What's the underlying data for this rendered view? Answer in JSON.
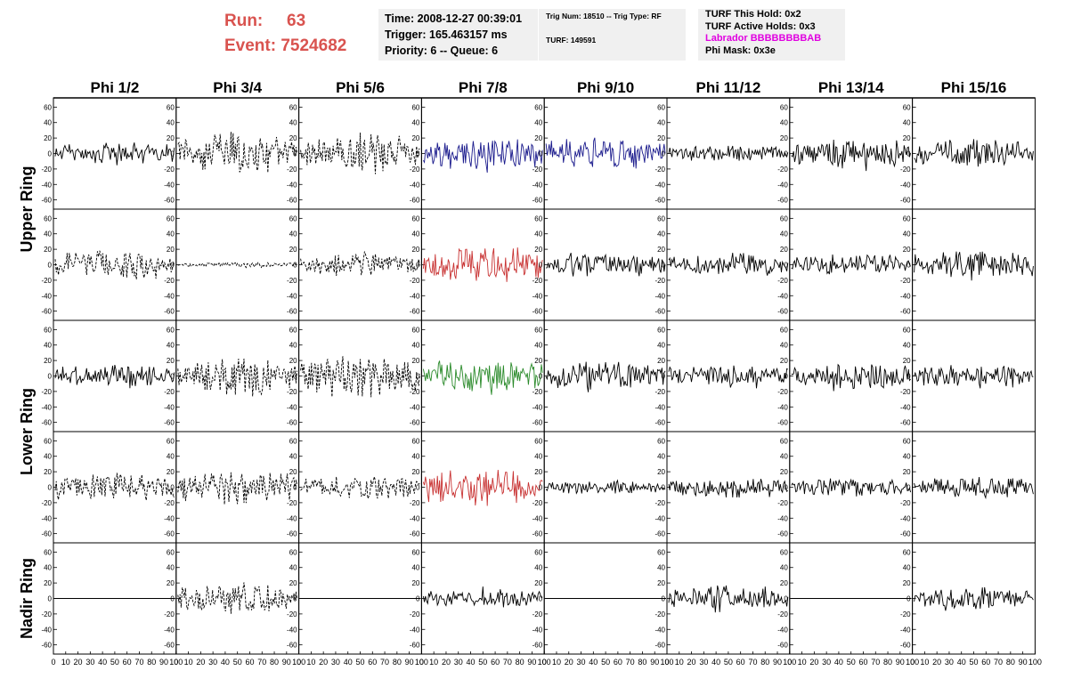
{
  "header": {
    "run_label": "Run:",
    "run_value": "63",
    "event_label": "Event:",
    "event_value": "7524682",
    "time_line": "Time: 2008-12-27 00:39:01",
    "trigger_line": "Trigger: 165.463157 ms",
    "priority_line": "Priority: 6 -- Queue: 6",
    "trig_line": "Trig Num: 18510 -- Trig Type: RF",
    "turf_line": "TURF: 149591",
    "turf_hold_line": "TURF This Hold: 0x2",
    "turf_active_line": "TURF Active Holds: 0x3",
    "labrador_line": "Labrador BBBBBBBBAB",
    "phi_mask_line": "Phi Mask: 0x3e",
    "colors": {
      "run_event": "#d9534f",
      "labrador": "#e000e0",
      "box_bg": "#f0f0f0"
    }
  },
  "chart_data": {
    "type": "line",
    "columns": [
      "Phi 1/2",
      "Phi 3/4",
      "Phi 5/6",
      "Phi 7/8",
      "Phi 9/10",
      "Phi 11/12",
      "Phi 13/14",
      "Phi 15/16"
    ],
    "ring_labels": [
      "Upper Ring",
      "Lower Ring",
      "Nadir Ring"
    ],
    "ring_rows": [
      [
        0,
        1
      ],
      [
        2,
        3
      ],
      [
        4,
        4
      ]
    ],
    "ylim": [
      -65,
      65
    ],
    "yticks": [
      -60,
      -40,
      -20,
      0,
      20,
      40,
      60
    ],
    "xlim": [
      0,
      100
    ],
    "xtick_labels": [
      "0",
      "10",
      "20",
      "30",
      "40",
      "50",
      "60",
      "70",
      "80",
      "90",
      "100"
    ],
    "grid": false,
    "colors": {
      "black": "#000000",
      "blue": "#1a1a8c",
      "red": "#c83232",
      "green": "#2a8a2a"
    },
    "panels": [
      [
        {
          "style": "solid",
          "color": "black",
          "amp": 14
        },
        {
          "style": "dashed",
          "color": "black",
          "amp": 25
        },
        {
          "style": "dashed",
          "color": "black",
          "amp": 25
        },
        {
          "style": "solid",
          "color": "blue",
          "amp": 20
        },
        {
          "style": "solid",
          "color": "blue",
          "amp": 20
        },
        {
          "style": "solid",
          "color": "black",
          "amp": 10
        },
        {
          "style": "solid",
          "color": "black",
          "amp": 18
        },
        {
          "style": "solid",
          "color": "black",
          "amp": 18
        }
      ],
      [
        {
          "style": "dashed",
          "color": "black",
          "amp": 18
        },
        {
          "style": "dashed",
          "color": "black",
          "amp": 3
        },
        {
          "style": "dashed",
          "color": "black",
          "amp": 14
        },
        {
          "style": "solid",
          "color": "red",
          "amp": 22
        },
        {
          "style": "solid",
          "color": "black",
          "amp": 16
        },
        {
          "style": "solid",
          "color": "black",
          "amp": 14
        },
        {
          "style": "solid",
          "color": "black",
          "amp": 14
        },
        {
          "style": "solid",
          "color": "black",
          "amp": 18
        }
      ],
      [
        {
          "style": "solid",
          "color": "black",
          "amp": 14
        },
        {
          "style": "dashed",
          "color": "black",
          "amp": 22
        },
        {
          "style": "dashed",
          "color": "black",
          "amp": 26
        },
        {
          "style": "solid",
          "color": "green",
          "amp": 20
        },
        {
          "style": "solid",
          "color": "black",
          "amp": 18
        },
        {
          "style": "solid",
          "color": "black",
          "amp": 14
        },
        {
          "style": "solid",
          "color": "black",
          "amp": 18
        },
        {
          "style": "solid",
          "color": "black",
          "amp": 14
        }
      ],
      [
        {
          "style": "dashed",
          "color": "black",
          "amp": 18
        },
        {
          "style": "dashed",
          "color": "black",
          "amp": 20
        },
        {
          "style": "dashed",
          "color": "black",
          "amp": 14
        },
        {
          "style": "solid",
          "color": "red",
          "amp": 24
        },
        {
          "style": "solid",
          "color": "black",
          "amp": 9
        },
        {
          "style": "solid",
          "color": "black",
          "amp": 14
        },
        {
          "style": "solid",
          "color": "black",
          "amp": 12
        },
        {
          "style": "solid",
          "color": "black",
          "amp": 14
        }
      ],
      [
        {
          "style": "flat",
          "color": "black",
          "amp": 0
        },
        {
          "style": "dashed",
          "color": "black",
          "amp": 20
        },
        {
          "style": "flat",
          "color": "black",
          "amp": 0
        },
        {
          "style": "solid",
          "color": "black",
          "amp": 12
        },
        {
          "style": "flat",
          "color": "black",
          "amp": 0
        },
        {
          "style": "solid",
          "color": "black",
          "amp": 16
        },
        {
          "style": "flat",
          "color": "black",
          "amp": 0
        },
        {
          "style": "solid",
          "color": "black",
          "amp": 14
        }
      ]
    ]
  }
}
